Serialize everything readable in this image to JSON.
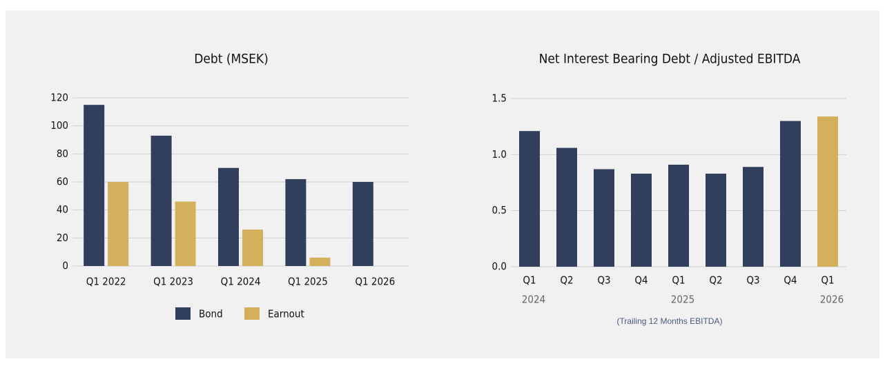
{
  "chart_data": [
    {
      "type": "grouped_bar",
      "title": "Debt (MSEK)",
      "categories": [
        "Q1 2022",
        "Q1 2023",
        "Q1 2024",
        "Q1 2025",
        "Q1 2026"
      ],
      "series": [
        {
          "name": "Bond",
          "color": "#323f5c",
          "values": [
            115,
            93,
            70,
            62,
            60
          ]
        },
        {
          "name": "Earnout",
          "color": "#d4b05c",
          "values": [
            60,
            46,
            26,
            6,
            null
          ]
        }
      ],
      "ylim": [
        0,
        120
      ],
      "yticks": [
        0,
        20,
        40,
        60,
        80,
        100,
        120
      ],
      "grid": true,
      "legend": "bottom"
    },
    {
      "type": "bar",
      "title": "Net Interest Bearing Debt / Adjusted EBITDA",
      "categories": [
        "Q1",
        "Q2",
        "Q3",
        "Q4",
        "Q1",
        "Q2",
        "Q3",
        "Q4",
        "Q1"
      ],
      "year_labels": [
        "2024",
        null,
        null,
        null,
        "2025",
        null,
        null,
        null,
        "2026"
      ],
      "values": [
        1.21,
        1.06,
        0.87,
        0.83,
        0.91,
        0.83,
        0.89,
        1.3,
        1.34
      ],
      "colors": [
        "#323f5c",
        "#323f5c",
        "#323f5c",
        "#323f5c",
        "#323f5c",
        "#323f5c",
        "#323f5c",
        "#323f5c",
        "#d4b05c"
      ],
      "ylim": [
        0,
        1.5
      ],
      "yticks": [
        {
          "value": 0,
          "label": "0.0"
        },
        0.5,
        {
          "value": 1,
          "label": "1.0"
        },
        1.5
      ],
      "grid": true,
      "note": "(Trailing 12 Months EBITDA)"
    }
  ]
}
